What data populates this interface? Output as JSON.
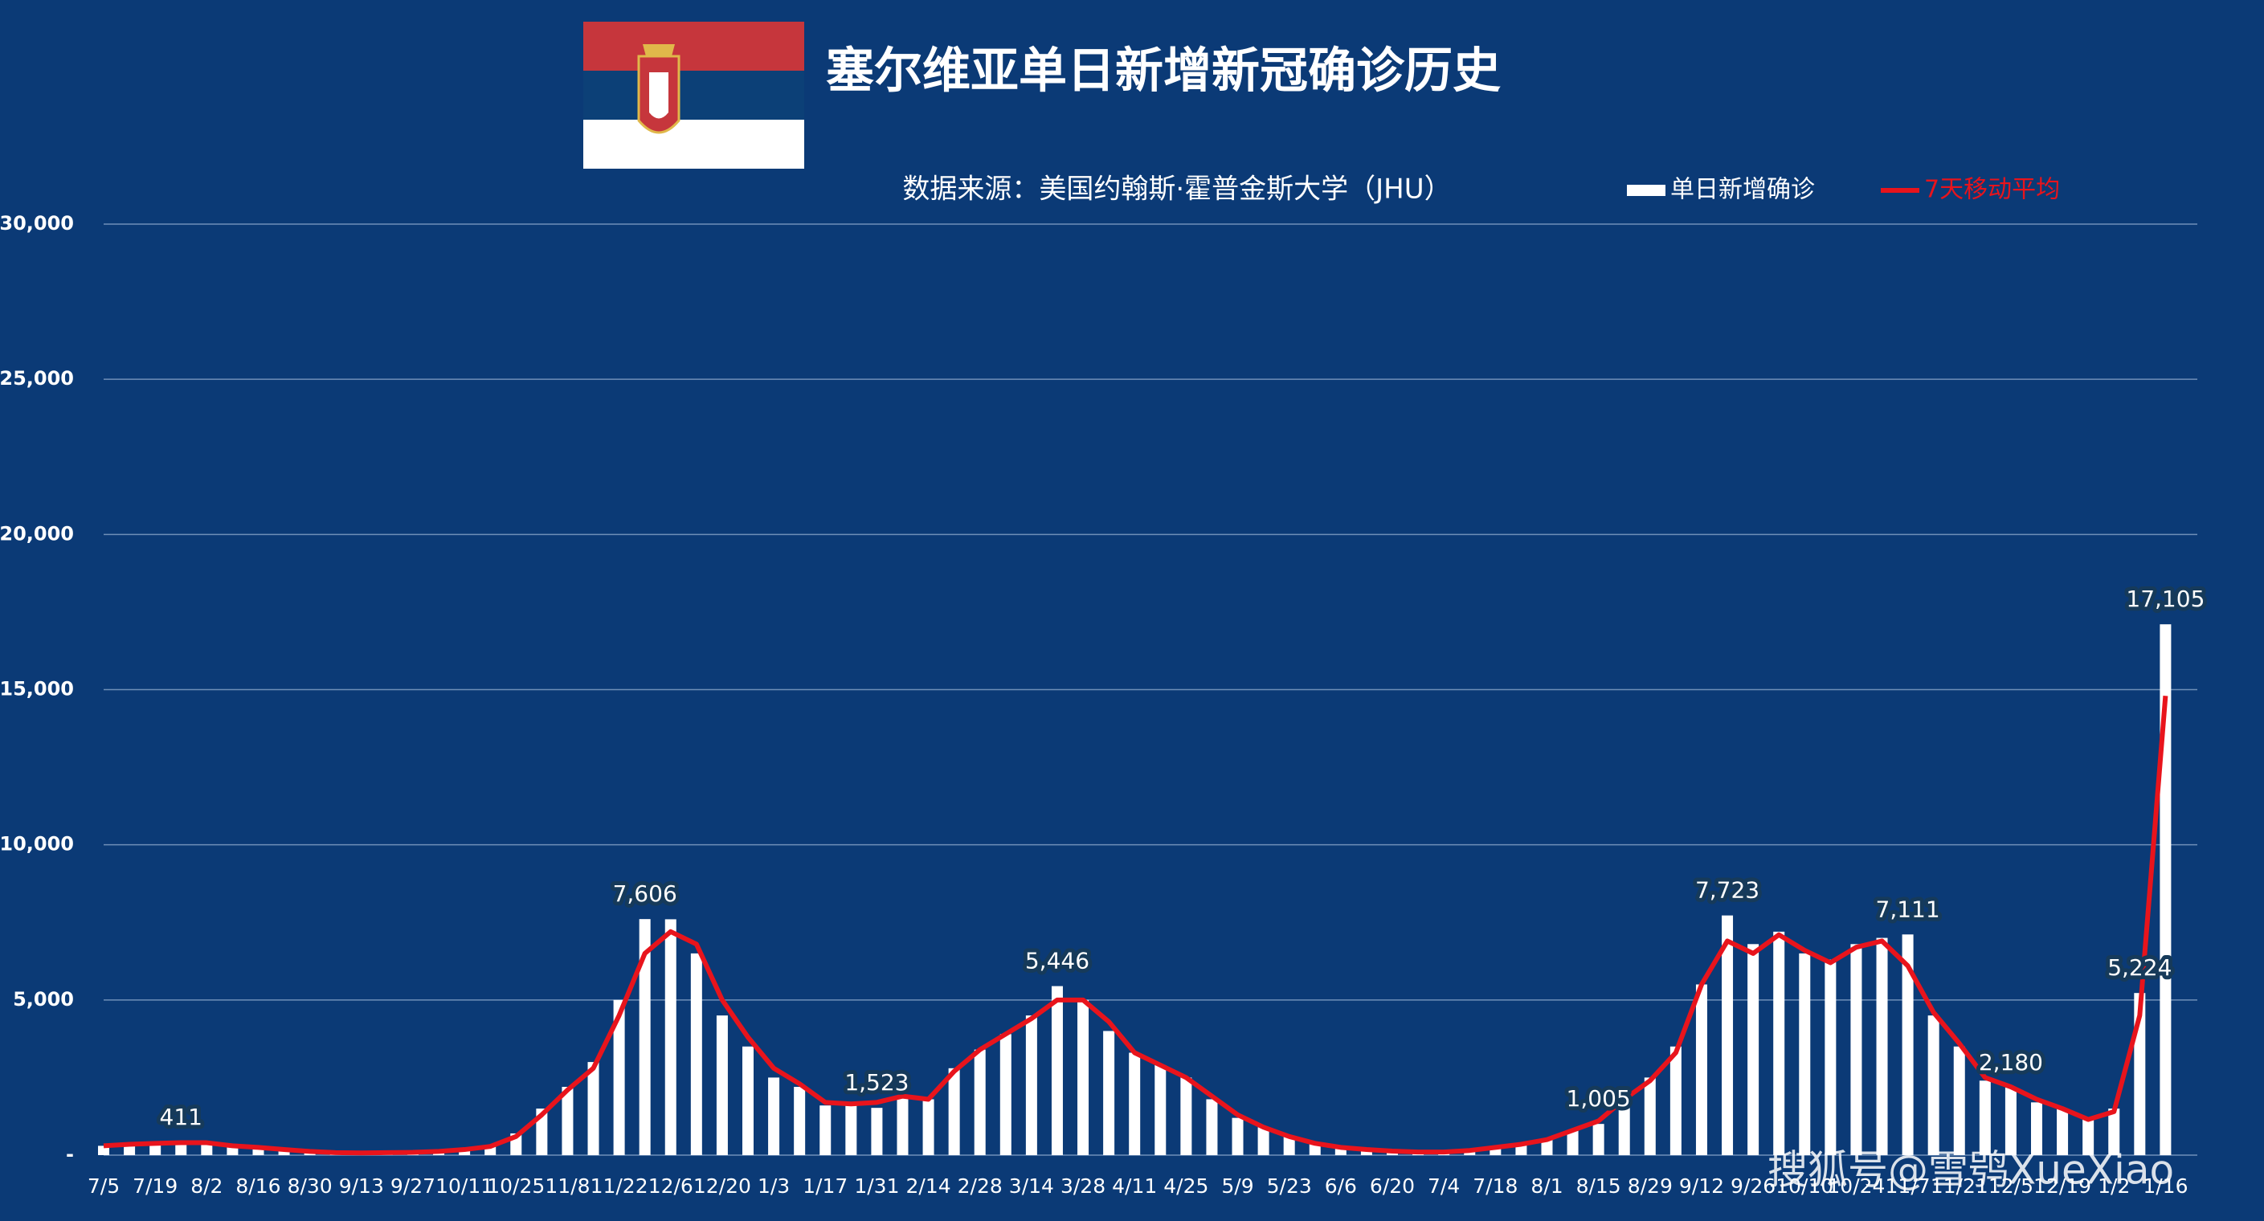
{
  "chart_data": {
    "type": "bar",
    "title": "塞尔维亚单日新增新冠确诊历史",
    "subtitle": "数据来源：美国约翰斯·霍普金斯大学（JHU）",
    "watermark": "搜狐号@雪鸮XueXiao",
    "categories": [
      "7/5",
      null,
      "7/19",
      null,
      "8/2",
      null,
      "8/16",
      null,
      "8/30",
      null,
      "9/13",
      null,
      "9/27",
      null,
      "10/11",
      null,
      "10/25",
      null,
      "11/8",
      null,
      "11/22",
      null,
      "12/6",
      null,
      "12/20",
      null,
      "1/3",
      null,
      "1/17",
      null,
      "1/31",
      null,
      "2/14",
      null,
      "2/28",
      null,
      "3/14",
      null,
      "3/28",
      null,
      "4/11",
      null,
      "4/25",
      null,
      "5/9",
      null,
      "5/23",
      null,
      "6/6",
      null,
      "6/20",
      null,
      "7/4",
      null,
      "7/18",
      null,
      "8/1",
      null,
      "8/15",
      null,
      "8/29",
      null,
      "9/12",
      null,
      "9/26",
      null,
      "10/10",
      null,
      "10/24",
      null,
      "11/7",
      null,
      "11/21",
      null,
      "12/5",
      null,
      "12/19",
      null,
      "1/2",
      null,
      "1/16"
    ],
    "series": [
      {
        "name": "单日新增确诊",
        "color": "#ffffff",
        "type": "bar",
        "values": [
          300,
          350,
          400,
          411,
          400,
          300,
          250,
          180,
          120,
          80,
          70,
          80,
          90,
          120,
          200,
          300,
          700,
          1500,
          2200,
          3000,
          5000,
          7606,
          7600,
          6500,
          4500,
          3500,
          2500,
          2200,
          1600,
          1600,
          1523,
          1900,
          1800,
          2800,
          3400,
          3900,
          4500,
          5446,
          5000,
          4000,
          3300,
          2900,
          2500,
          1800,
          1200,
          900,
          600,
          350,
          250,
          180,
          130,
          100,
          100,
          150,
          250,
          350,
          500,
          800,
          1005,
          2000,
          2500,
          3500,
          5500,
          7723,
          6800,
          7200,
          6500,
          6300,
          6800,
          7000,
          7111,
          4500,
          3500,
          2400,
          2180,
          1700,
          1500,
          1200,
          1500,
          5224,
          17105
        ],
        "value_labels": [
          null,
          null,
          null,
          "411",
          null,
          null,
          null,
          null,
          null,
          null,
          null,
          null,
          null,
          null,
          null,
          null,
          null,
          null,
          null,
          null,
          null,
          "7,606",
          null,
          null,
          null,
          null,
          null,
          null,
          null,
          null,
          "1,523",
          null,
          null,
          null,
          null,
          null,
          null,
          "5,446",
          null,
          null,
          null,
          null,
          null,
          null,
          null,
          null,
          null,
          null,
          null,
          null,
          null,
          null,
          null,
          null,
          null,
          null,
          null,
          null,
          "1,005",
          null,
          null,
          null,
          null,
          "7,723",
          null,
          null,
          null,
          null,
          null,
          null,
          "7,111",
          null,
          null,
          null,
          "2,180",
          null,
          null,
          null,
          null,
          "5,224",
          "17,105"
        ]
      },
      {
        "name": "7天移动平均",
        "color": "#e8141c",
        "type": "line",
        "values": [
          300,
          350,
          380,
          400,
          400,
          300,
          250,
          180,
          120,
          80,
          70,
          80,
          90,
          120,
          180,
          280,
          600,
          1300,
          2100,
          2800,
          4500,
          6500,
          7200,
          6800,
          5000,
          3800,
          2800,
          2300,
          1700,
          1650,
          1700,
          1900,
          1800,
          2700,
          3400,
          3900,
          4400,
          5000,
          5000,
          4300,
          3300,
          2900,
          2500,
          1900,
          1300,
          900,
          600,
          380,
          250,
          180,
          130,
          100,
          100,
          150,
          250,
          350,
          500,
          800,
          1100,
          1800,
          2400,
          3300,
          5500,
          6900,
          6500,
          7100,
          6600,
          6200,
          6700,
          6900,
          6100,
          4600,
          3600,
          2500,
          2200,
          1800,
          1500,
          1150,
          1400,
          4500,
          14800
        ]
      }
    ],
    "ylim": [
      0,
      30000
    ],
    "yticks": [
      {
        "value": 0,
        "label": "-"
      },
      {
        "value": 5000,
        "label": "5,000"
      },
      {
        "value": 10000,
        "label": "10,000"
      },
      {
        "value": 15000,
        "label": "15,000"
      },
      {
        "value": 20000,
        "label": "20,000"
      },
      {
        "value": 25000,
        "label": "25,000"
      },
      {
        "value": 30000,
        "label": "30,000"
      }
    ],
    "grid": true,
    "background": "#0b3a76"
  }
}
